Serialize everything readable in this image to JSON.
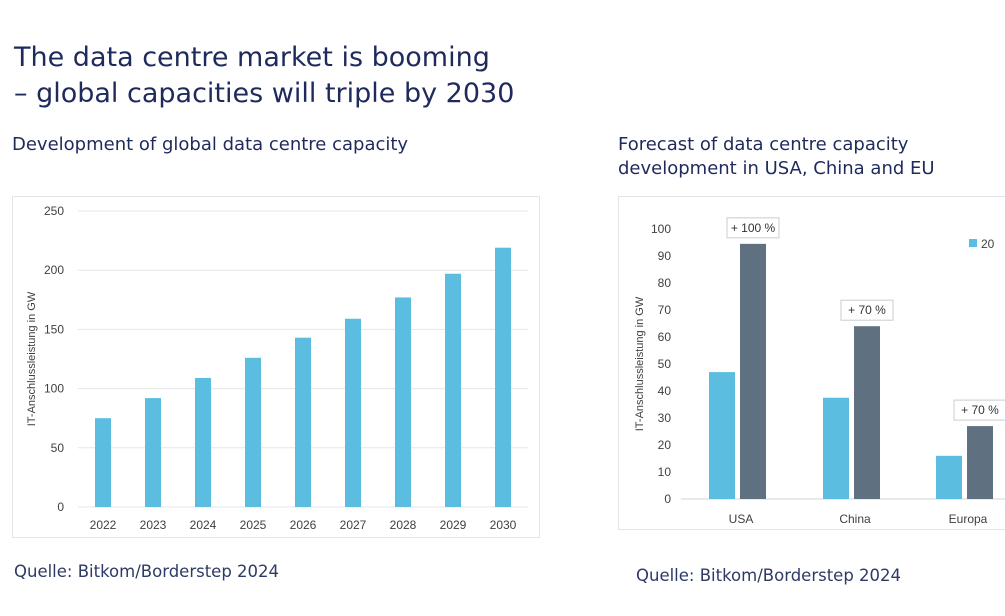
{
  "page": {
    "title_line1": "The data centre market is booming",
    "title_line2": "– global capacities will triple by 2030",
    "left_subtitle": "Development of global data centre capacity",
    "right_subtitle_line1": "Forecast of data centre capacity",
    "right_subtitle_line2": "development in USA, China and EU",
    "left_source": "Quelle: Bitkom/Borderstep 2024",
    "right_source": "Quelle: Bitkom/Borderstep 2024"
  },
  "colors": {
    "bar_light": "#5bbde0",
    "bar_dark": "#5f7180",
    "grid": "#e3e6ea",
    "axis_text": "#404040"
  },
  "chart_data": [
    {
      "type": "bar",
      "title": "Development of global data centre capacity",
      "ylabel": "IT-Anschlussleistung in GW",
      "xlabel": "",
      "ylim": [
        0,
        250
      ],
      "yticks": [
        0,
        50,
        100,
        150,
        200,
        250
      ],
      "categories": [
        "2022",
        "2023",
        "2024",
        "2025",
        "2026",
        "2027",
        "2028",
        "2029",
        "2030"
      ],
      "values": [
        75,
        92,
        109,
        126,
        143,
        159,
        177,
        197,
        219
      ],
      "grid": true
    },
    {
      "type": "bar",
      "title": "Forecast of data centre capacity development in USA, China and EU",
      "ylabel": "IT-Anschlussleistung in GW",
      "xlabel": "",
      "ylim": [
        0,
        100
      ],
      "yticks": [
        0,
        10,
        20,
        30,
        40,
        50,
        60,
        70,
        80,
        90,
        100
      ],
      "categories": [
        "USA",
        "China",
        "Europa"
      ],
      "series": [
        {
          "name": "20",
          "values": [
            47,
            37.5,
            16
          ]
        },
        {
          "name": "",
          "values": [
            94.5,
            64,
            27
          ]
        }
      ],
      "annotations": [
        "+ 100 %",
        "+ 70 %",
        "+ 70 %"
      ],
      "legend_position": "top-right",
      "grid": false
    }
  ]
}
